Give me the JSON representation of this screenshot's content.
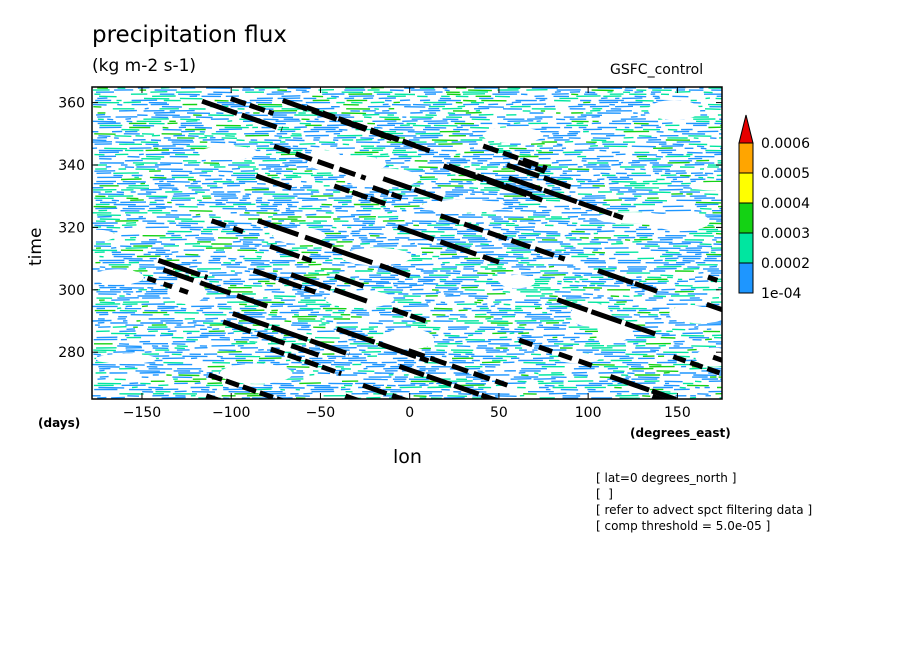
{
  "header": {
    "title": "precipitation flux",
    "units": "(kg m-2 s-1)",
    "run": "GSFC_control"
  },
  "axes": {
    "xlabel": "lon",
    "xunit": "(degrees_east)",
    "ylabel": "time",
    "yunit": "(days)"
  },
  "annotations": [
    "[ lat=0 degrees_north ]",
    "[  ]",
    "[ refer to advect spct filtering data ]",
    "[ comp threshold = 5.0e-05 ]"
  ],
  "chart_data": {
    "type": "heatmap",
    "title": "precipitation flux",
    "subtitle": "(kg m-2 s-1)",
    "xlabel": "lon",
    "ylabel": "time",
    "xlim": [
      -178,
      175
    ],
    "ylim": [
      265,
      365
    ],
    "xticks": [
      -150,
      -100,
      -50,
      0,
      50,
      100,
      150
    ],
    "yticks": [
      280,
      300,
      320,
      340,
      360
    ],
    "colorbar": {
      "levels": [
        "1e-04",
        "0.0002",
        "0.0003",
        "0.0004",
        "0.0005",
        "0.0006"
      ],
      "colors": [
        "#1e96ff",
        "#00e6a0",
        "#14d214",
        "#ffff00",
        "#ffa500",
        "#e60000"
      ]
    },
    "streaks_color": "#000000",
    "streaks_slope_deg_per_day": -5,
    "grid": false
  }
}
